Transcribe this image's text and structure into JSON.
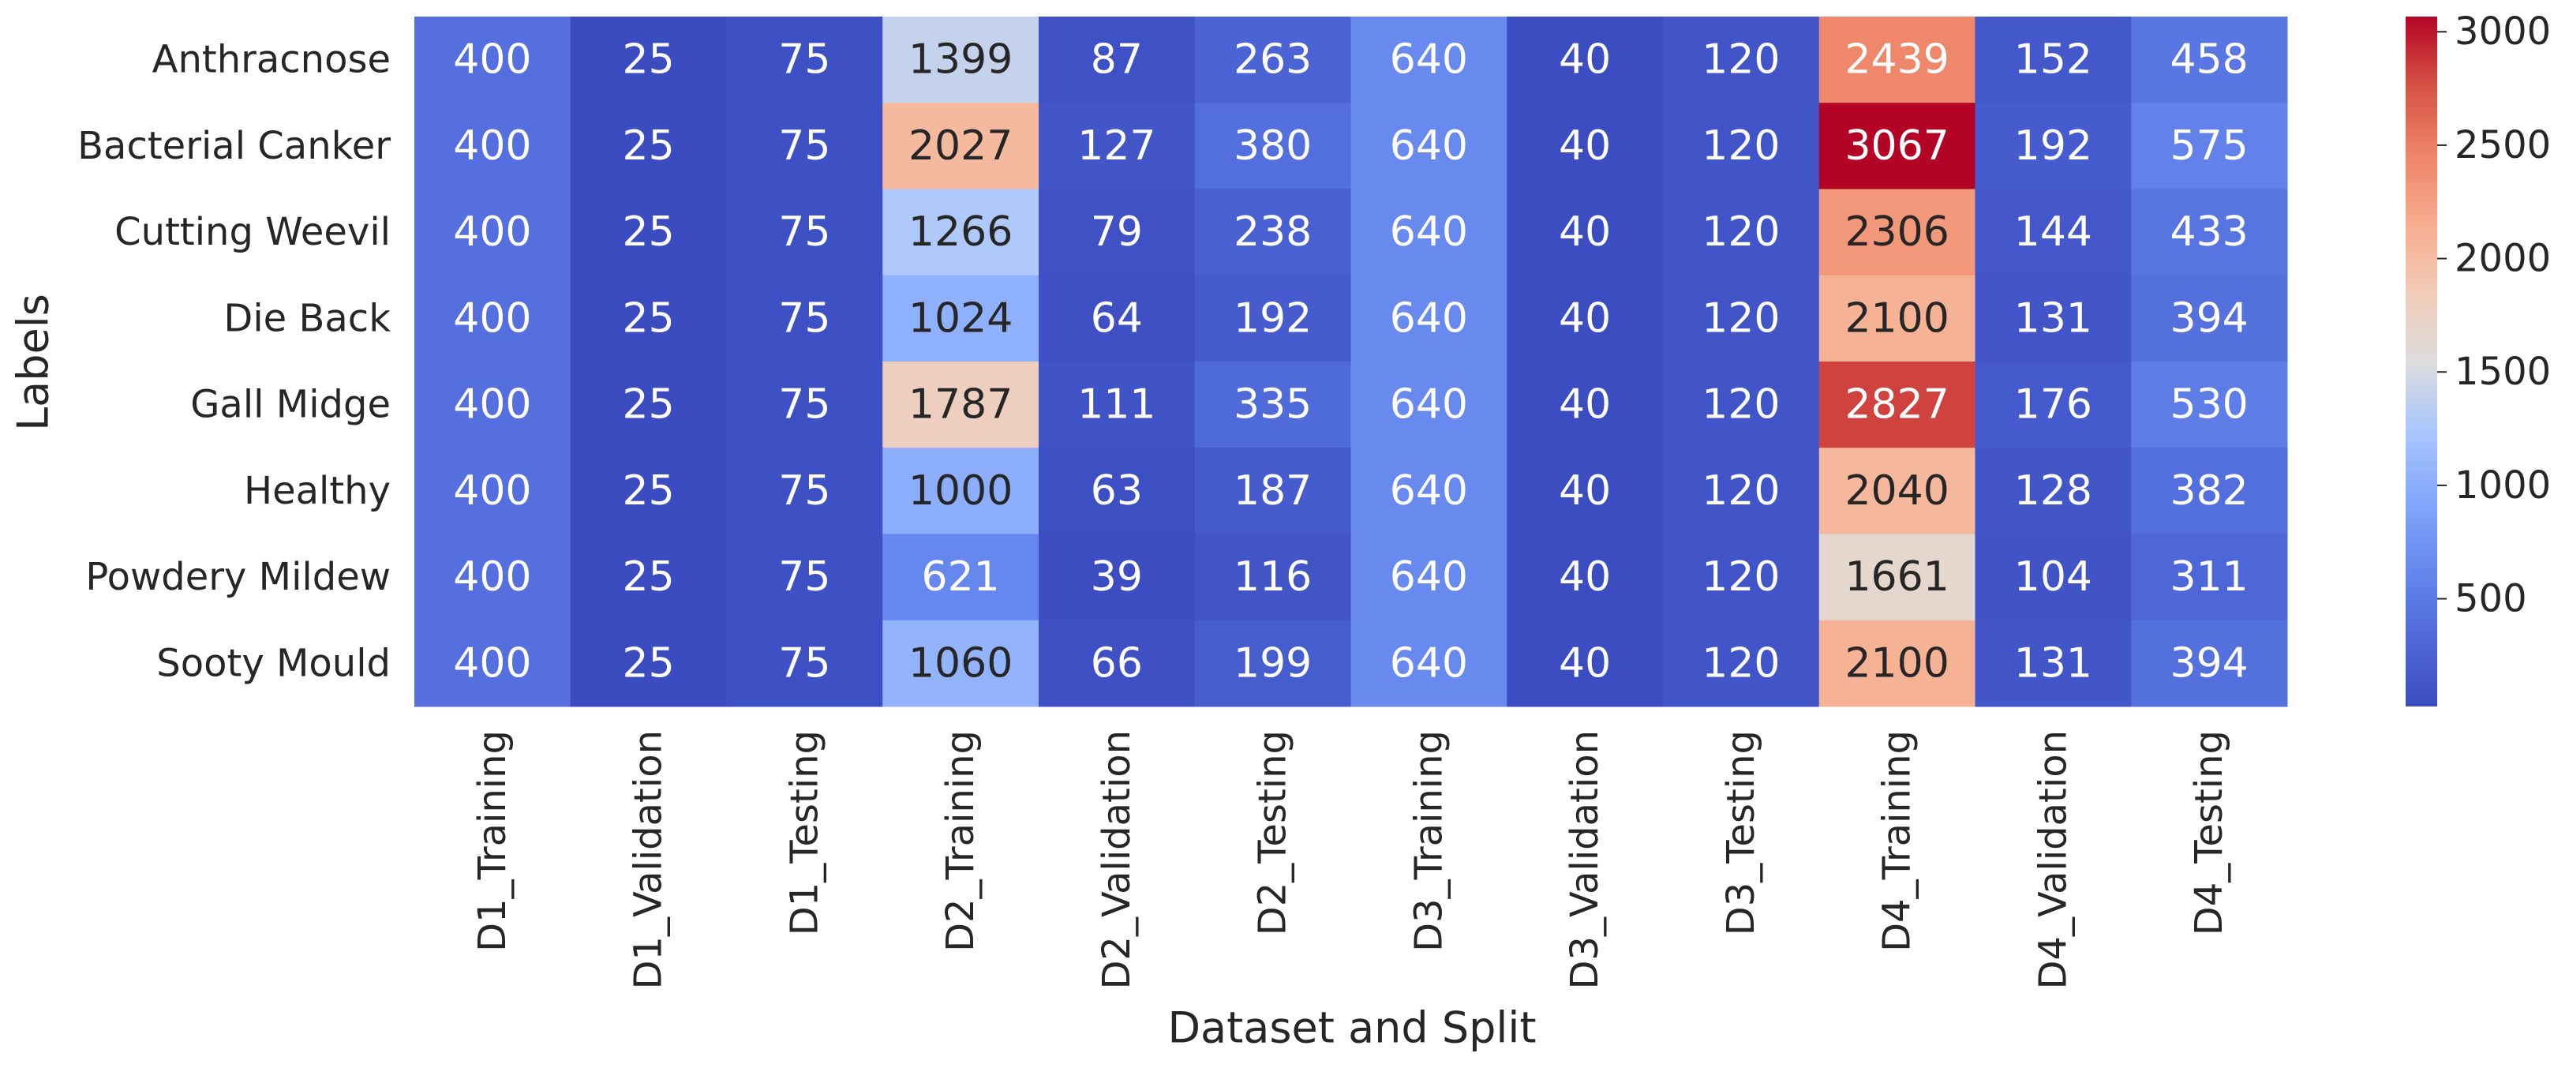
{
  "chart_data": {
    "type": "heatmap",
    "x_label": "Dataset and Split",
    "y_label": "Labels",
    "x_categories": [
      "D1_Training",
      "D1_Validation",
      "D1_Testing",
      "D2_Training",
      "D2_Validation",
      "D2_Testing",
      "D3_Training",
      "D3_Validation",
      "D3_Testing",
      "D4_Training",
      "D4_Validation",
      "D4_Testing"
    ],
    "y_categories": [
      "Anthracnose",
      "Bacterial Canker",
      "Cutting Weevil",
      "Die Back",
      "Gall Midge",
      "Healthy",
      "Powdery Mildew",
      "Sooty Mould"
    ],
    "values": [
      [
        400,
        25,
        75,
        1399,
        87,
        263,
        640,
        40,
        120,
        2439,
        152,
        458
      ],
      [
        400,
        25,
        75,
        2027,
        127,
        380,
        640,
        40,
        120,
        3067,
        192,
        575
      ],
      [
        400,
        25,
        75,
        1266,
        79,
        238,
        640,
        40,
        120,
        2306,
        144,
        433
      ],
      [
        400,
        25,
        75,
        1024,
        64,
        192,
        640,
        40,
        120,
        2100,
        131,
        394
      ],
      [
        400,
        25,
        75,
        1787,
        111,
        335,
        640,
        40,
        120,
        2827,
        176,
        530
      ],
      [
        400,
        25,
        75,
        1000,
        63,
        187,
        640,
        40,
        120,
        2040,
        128,
        382
      ],
      [
        400,
        25,
        75,
        621,
        39,
        116,
        640,
        40,
        120,
        1661,
        104,
        311
      ],
      [
        400,
        25,
        75,
        1060,
        66,
        199,
        640,
        40,
        120,
        2100,
        131,
        394
      ]
    ],
    "colormap": "coolwarm",
    "clim": [
      25,
      3067
    ],
    "colorbar_ticks": [
      500,
      1000,
      1500,
      2000,
      2500,
      3000
    ]
  }
}
